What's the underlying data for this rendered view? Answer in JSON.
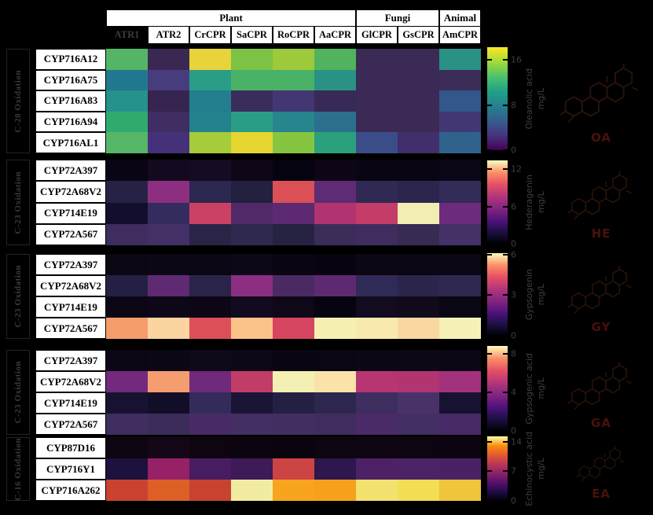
{
  "header": {
    "groups": [
      {
        "label": "Plant",
        "cols": 6
      },
      {
        "label": "Fungi",
        "cols": 2
      },
      {
        "label": "Animal",
        "cols": 1
      }
    ],
    "columns": [
      {
        "label": "ATR1",
        "muted": true
      },
      {
        "label": "ATR2"
      },
      {
        "label": "CrCPR"
      },
      {
        "label": "SaCPR"
      },
      {
        "label": "RoCPR"
      },
      {
        "label": "AaCPR"
      },
      {
        "label": "GlCPR"
      },
      {
        "label": "GsCPR"
      },
      {
        "label": "AmCPR"
      }
    ]
  },
  "colors": {
    "background": "#000000",
    "box_background": "#ffffff",
    "box_text": "#000000",
    "dim_text": "#3e3e3e",
    "muted_header_text": "#3d3d3d",
    "structure_line": "#2a130a",
    "structure_label": "#48110a"
  },
  "chart_data": [
    {
      "type": "heatmap",
      "section_label": "C-28 Oxidation",
      "rows": [
        "CYP716A12",
        "CYP716A75",
        "CYP716A83",
        "CYP716A94",
        "CYP716AL1"
      ],
      "columns": [
        "ATR1",
        "ATR2",
        "CrCPR",
        "SaCPR",
        "RoCPR",
        "AaCPR",
        "GlCPR",
        "GsCPR",
        "AmCPR"
      ],
      "colormap": "viridis",
      "colorbar": {
        "label": "Oleanolic acid",
        "unit": "mg/L",
        "ticks": [
          16,
          8,
          0
        ],
        "range": [
          0,
          18.3
        ]
      },
      "structure_abbr": "OA",
      "values": [
        [
          13.4,
          0.5,
          17.4,
          14.6,
          15.6,
          13.2,
          0.7,
          0.7,
          9.2
        ],
        [
          7.7,
          2.7,
          10.0,
          12.8,
          12.8,
          9.2,
          0.7,
          0.7,
          0.9
        ],
        [
          9.2,
          0.5,
          8.0,
          1.3,
          2.2,
          0.9,
          0.7,
          0.7,
          4.9
        ],
        [
          11.5,
          1.6,
          8.2,
          10.0,
          8.4,
          7.0,
          0.7,
          0.7,
          2.2
        ],
        [
          13.4,
          2.2,
          15.7,
          17.4,
          14.8,
          10.4,
          4.0,
          1.8,
          6.0
        ]
      ],
      "cell_colors": [
        [
          "#54b567",
          "#3b2852",
          "#e8d33b",
          "#7cc245",
          "#9cca3a",
          "#51b35e",
          "#3a2a55",
          "#3a2a55",
          "#2a9185"
        ],
        [
          "#20798e",
          "#473d7d",
          "#2a9d87",
          "#4ab266",
          "#4ab266",
          "#2a9185",
          "#3a2a55",
          "#3a2a55",
          "#3c2c58"
        ],
        [
          "#27918b",
          "#362550",
          "#237e8e",
          "#3a2d5c",
          "#433773",
          "#382a56",
          "#3a2a55",
          "#3a2a55",
          "#33568b"
        ],
        [
          "#30ab6f",
          "#3f2d63",
          "#24818e",
          "#2a9d87",
          "#27858e",
          "#2d708e",
          "#3a2a55",
          "#3a2a55",
          "#433773"
        ],
        [
          "#55b667",
          "#45317a",
          "#a5cc3b",
          "#e5d52f",
          "#86c540",
          "#2aa07c",
          "#3a4d89",
          "#402f6a",
          "#2f638e"
        ]
      ]
    },
    {
      "type": "heatmap",
      "section_label": "C-23 Oxidation",
      "rows": [
        "CYP72A397",
        "CYP72A68V2",
        "CYP714E19",
        "CYP72A567"
      ],
      "columns": [
        "ATR1",
        "ATR2",
        "CrCPR",
        "SaCPR",
        "RoCPR",
        "AaCPR",
        "GlCPR",
        "GsCPR",
        "AmCPR"
      ],
      "colormap": "magma",
      "colorbar": {
        "label": "Hederagenin",
        "unit": "mg/L",
        "ticks": [
          12,
          6,
          0
        ],
        "range": [
          0,
          13.4
        ]
      },
      "structure_abbr": "HE",
      "values": [
        [
          0.2,
          0.4,
          0.4,
          0.3,
          0.1,
          0.3,
          0.2,
          0.2,
          0.2
        ],
        [
          1.7,
          5.3,
          2.0,
          1.6,
          8.2,
          3.7,
          2.0,
          1.9,
          2.1
        ],
        [
          0.9,
          2.3,
          7.3,
          3.3,
          3.7,
          6.4,
          7.0,
          12.9,
          4.3
        ],
        [
          2.4,
          2.6,
          1.7,
          1.9,
          1.5,
          2.3,
          2.4,
          2.1,
          2.6
        ]
      ],
      "cell_colors": [
        [
          "#0a0514",
          "#130a20",
          "#150b22",
          "#0e0718",
          "#060310",
          "#0d0616",
          "#0a0513",
          "#0a0513",
          "#0b0515"
        ],
        [
          "#262246",
          "#8c2f80",
          "#2c2750",
          "#232040",
          "#db5057",
          "#5e2b74",
          "#2f2954",
          "#2c264e",
          "#332b58"
        ],
        [
          "#130e2d",
          "#342c5e",
          "#ca4164",
          "#512968",
          "#5d2a72",
          "#b23371",
          "#c33d68",
          "#f2edb2",
          "#6d2b7d"
        ],
        [
          "#3e2d5e",
          "#433067",
          "#2a2447",
          "#2f284f",
          "#262242",
          "#3c2c5a",
          "#3f2d5f",
          "#372b54",
          "#443168"
        ]
      ]
    },
    {
      "type": "heatmap",
      "section_label": "C-23 Oxidation",
      "rows": [
        "CYP72A397",
        "CYP72A68V2",
        "CYP714E19",
        "CYP72A567"
      ],
      "columns": [
        "ATR1",
        "ATR2",
        "CrCPR",
        "SaCPR",
        "RoCPR",
        "AaCPR",
        "GlCPR",
        "GsCPR",
        "AmCPR"
      ],
      "colormap": "magma",
      "colorbar": {
        "label": "Gypsogenin",
        "unit": "mg/L",
        "ticks": [
          6,
          3,
          0
        ],
        "range": [
          0,
          6.1
        ]
      },
      "structure_abbr": "GY",
      "values": [
        [
          0.1,
          0.1,
          0.1,
          0.1,
          0.1,
          0.0,
          0.1,
          0.1,
          0.1
        ],
        [
          0.8,
          1.8,
          0.8,
          2.5,
          1.4,
          1.8,
          1.0,
          0.8,
          0.9
        ],
        [
          0.1,
          0.1,
          0.1,
          0.2,
          0.1,
          0.0,
          0.2,
          0.1,
          0.1
        ],
        [
          4.9,
          5.5,
          4.0,
          5.3,
          3.7,
          6.1,
          6.0,
          5.6,
          6.2
        ]
      ],
      "cell_colors": [
        [
          "#0a0612",
          "#0d0715",
          "#0c0614",
          "#0e0717",
          "#0a0513",
          "#070310",
          "#0c0615",
          "#0b0614",
          "#0a0612"
        ],
        [
          "#232044",
          "#5f2a72",
          "#2a2449",
          "#8d2f81",
          "#4b2a64",
          "#5d2a71",
          "#302a57",
          "#2b254b",
          "#2f2850"
        ],
        [
          "#0b0614",
          "#0e0717",
          "#0c0615",
          "#120a1e",
          "#0f0819",
          "#070310",
          "#130b20",
          "#100a1b",
          "#0b0614"
        ],
        [
          "#f59c6b",
          "#fbd49f",
          "#dd4f58",
          "#fbc289",
          "#d5455f",
          "#f5efb1",
          "#f8eaae",
          "#fad7a0",
          "#f6f1b6"
        ]
      ]
    },
    {
      "type": "heatmap",
      "section_label": "C-23 Oxidation",
      "rows": [
        "CYP72A397",
        "CYP72A68V2",
        "CYP714E19",
        "CYP72A567"
      ],
      "columns": [
        "ATR1",
        "ATR2",
        "CrCPR",
        "SaCPR",
        "RoCPR",
        "AaCPR",
        "GlCPR",
        "GsCPR",
        "AmCPR"
      ],
      "colormap": "magma",
      "colorbar": {
        "label": "Gypsogenic acid",
        "unit": "mg/L",
        "ticks": [
          8,
          4,
          0
        ],
        "range": [
          0,
          8.8
        ]
      },
      "structure_abbr": "GA",
      "values": [
        [
          0.1,
          0.1,
          0.1,
          0.1,
          0.1,
          0.1,
          0.1,
          0.1,
          0.1
        ],
        [
          3.0,
          7.0,
          2.9,
          4.8,
          8.7,
          8.4,
          4.4,
          4.3,
          4.0
        ],
        [
          0.7,
          0.5,
          1.5,
          0.8,
          1.1,
          1.3,
          1.6,
          1.9,
          0.7
        ],
        [
          1.8,
          1.7,
          2.0,
          1.9,
          1.8,
          1.8,
          2.1,
          1.9,
          2.0
        ]
      ],
      "cell_colors": [
        [
          "#0c0614",
          "#0d0715",
          "#10091a",
          "#0e0718",
          "#090512",
          "#0b0614",
          "#0c0615",
          "#0d0716",
          "#0b0614"
        ],
        [
          "#73297d",
          "#f59d6e",
          "#6f2a7c",
          "#c13d67",
          "#f4efb2",
          "#f9e3a8",
          "#b73571",
          "#b23470",
          "#a3327e"
        ],
        [
          "#171231",
          "#130e28",
          "#332b59",
          "#1a1536",
          "#242044",
          "#2d2750",
          "#3e2d5f",
          "#493269",
          "#171231"
        ],
        [
          "#402e60",
          "#3b2c5a",
          "#482b66",
          "#442f64",
          "#422e61",
          "#402d5f",
          "#4b2a68",
          "#432f63",
          "#482b66"
        ]
      ]
    },
    {
      "type": "heatmap",
      "section_label": "C-16 Oxidation",
      "rows": [
        "CYP87D16",
        "CYP716Y1",
        "CYP716A262"
      ],
      "columns": [
        "ATR1",
        "ATR2",
        "CrCPR",
        "SaCPR",
        "RoCPR",
        "AaCPR",
        "GlCPR",
        "GsCPR",
        "AmCPR"
      ],
      "colormap": "inferno",
      "colorbar": {
        "label": "Echinocystic acid",
        "unit": "mg/L",
        "ticks": [
          14,
          7,
          0
        ],
        "range": [
          0,
          15.3
        ]
      },
      "structure_abbr": "EA",
      "values": [
        [
          0.2,
          0.3,
          0.2,
          0.2,
          0.1,
          0.2,
          0.2,
          0.2,
          0.2
        ],
        [
          1.6,
          6.6,
          3.5,
          3.0,
          8.6,
          2.4,
          3.6,
          3.6,
          3.6
        ],
        [
          8.8,
          9.9,
          8.6,
          15.2,
          12.2,
          12.1,
          14.6,
          14.3,
          13.3
        ]
      ],
      "cell_colors": [
        [
          "#0d0510",
          "#140617",
          "#0e0511",
          "#0c0410",
          "#0a040e",
          "#0d0510",
          "#0e0512",
          "#0d0511",
          "#0c0410"
        ],
        [
          "#1d113d",
          "#962167",
          "#471c62",
          "#3e1a56",
          "#cc4443",
          "#2e164e",
          "#4c2166",
          "#4b2366",
          "#4a2164"
        ],
        [
          "#ca422f",
          "#de5f26",
          "#c8432f",
          "#f2eca1",
          "#f8a41f",
          "#f6a11c",
          "#f3e170",
          "#f2dd55",
          "#f0c53c"
        ]
      ]
    }
  ]
}
